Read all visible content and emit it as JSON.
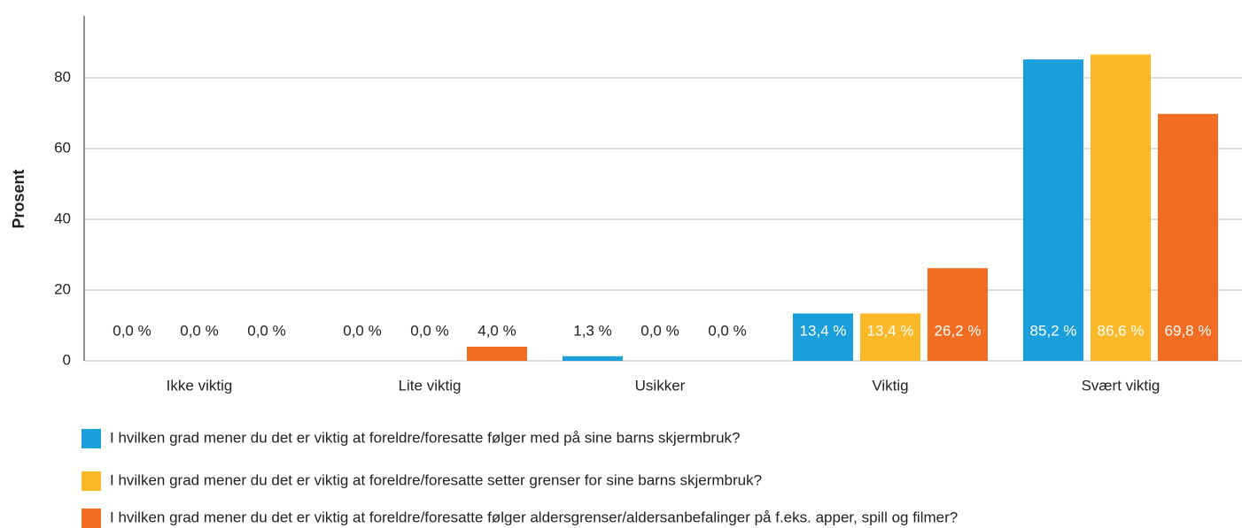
{
  "chart_data": {
    "type": "bar",
    "y_label": "Prosent",
    "categories": [
      "Ikke viktig",
      "Lite viktig",
      "Usikker",
      "Viktig",
      "Svært viktig"
    ],
    "series": [
      {
        "name": "I hvilken grad mener du det er viktig at foreldre/foresatte følger med på sine barns skjermbruk?",
        "color": "#1a9fdb",
        "values": [
          0.0,
          0.0,
          1.3,
          13.4,
          85.2
        ],
        "value_labels": [
          "0,0 %",
          "0,0 %",
          "1,3 %",
          "13,4 %",
          "85,2 %"
        ]
      },
      {
        "name": "I hvilken grad mener du det er viktig at foreldre/foresatte setter grenser for sine barns skjermbruk?",
        "color": "#fbb829",
        "values": [
          0.0,
          0.0,
          0.0,
          13.4,
          86.6
        ],
        "value_labels": [
          "0,0 %",
          "0,0 %",
          "0,0 %",
          "13,4 %",
          "86,6 %"
        ]
      },
      {
        "name": "I hvilken grad mener du det er viktig at foreldre/foresatte følger aldersgrenser/aldersanbefalinger på f.eks. apper, spill og filmer?",
        "color": "#f26d21",
        "values": [
          0.0,
          4.0,
          0.0,
          26.2,
          69.8
        ],
        "value_labels": [
          "0,0 %",
          "4,0 %",
          "0,0 %",
          "26,2 %",
          "69,8 %"
        ]
      }
    ],
    "ylim": [
      0,
      97.5
    ],
    "yticks": [
      0,
      20,
      40,
      60,
      80
    ],
    "grid": true
  }
}
